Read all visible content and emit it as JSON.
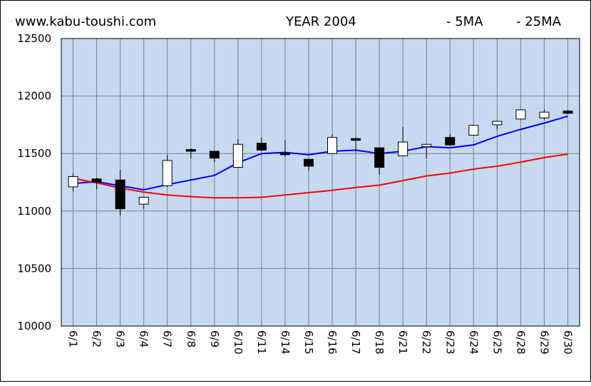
{
  "header": {
    "site": "www.kabu-toushi.com",
    "title": "YEAR 2004"
  },
  "legend": [
    {
      "label": "- 5MA",
      "color": "#0000ff"
    },
    {
      "label": "- 25MA",
      "color": "#ff0000"
    }
  ],
  "colors": {
    "plot_bg": "#c5d9f1",
    "grid": "#808080",
    "up_body": "#ffffff",
    "down_body": "#000000",
    "ma5": "#0000ff",
    "ma25": "#ff0000"
  },
  "chart_data": {
    "type": "candlestick",
    "title": "YEAR 2004",
    "ylim": [
      10000,
      12500
    ],
    "yticks": [
      10000,
      10500,
      11000,
      11500,
      12000,
      12500
    ],
    "grid": true,
    "legend_position": "top-right",
    "categories": [
      "6/1",
      "6/2",
      "6/3",
      "6/4",
      "6/7",
      "6/8",
      "6/9",
      "6/10",
      "6/11",
      "6/14",
      "6/15",
      "6/16",
      "6/17",
      "6/18",
      "6/21",
      "6/22",
      "6/23",
      "6/24",
      "6/25",
      "6/28",
      "6/29",
      "6/30"
    ],
    "candles": [
      {
        "open": 11210,
        "close": 11300,
        "high": 11330,
        "low": 11170
      },
      {
        "open": 11280,
        "close": 11250,
        "high": 11290,
        "low": 11190
      },
      {
        "open": 11270,
        "close": 11020,
        "high": 11360,
        "low": 10960
      },
      {
        "open": 11060,
        "close": 11120,
        "high": 11125,
        "low": 11020
      },
      {
        "open": 11220,
        "close": 11440,
        "high": 11490,
        "low": 11210
      },
      {
        "open": 11535,
        "close": 11520,
        "high": 11545,
        "low": 11460
      },
      {
        "open": 11520,
        "close": 11460,
        "high": 11525,
        "low": 11425
      },
      {
        "open": 11380,
        "close": 11580,
        "high": 11625,
        "low": 11375
      },
      {
        "open": 11590,
        "close": 11530,
        "high": 11640,
        "low": 11520
      },
      {
        "open": 11505,
        "close": 11490,
        "high": 11620,
        "low": 11470
      },
      {
        "open": 11450,
        "close": 11390,
        "high": 11455,
        "low": 11350
      },
      {
        "open": 11500,
        "close": 11640,
        "high": 11670,
        "low": 11495
      },
      {
        "open": 11630,
        "close": 11615,
        "high": 11640,
        "low": 11510
      },
      {
        "open": 11550,
        "close": 11380,
        "high": 11555,
        "low": 11315
      },
      {
        "open": 11480,
        "close": 11600,
        "high": 11730,
        "low": 11475
      },
      {
        "open": 11560,
        "close": 11580,
        "high": 11585,
        "low": 11460
      },
      {
        "open": 11640,
        "close": 11575,
        "high": 11670,
        "low": 11570
      },
      {
        "open": 11660,
        "close": 11745,
        "high": 11750,
        "low": 11655
      },
      {
        "open": 11750,
        "close": 11780,
        "high": 11785,
        "low": 11710
      },
      {
        "open": 11800,
        "close": 11880,
        "high": 11885,
        "low": 11790
      },
      {
        "open": 11810,
        "close": 11860,
        "high": 11885,
        "low": 11795
      },
      {
        "open": 11870,
        "close": 11850,
        "high": 11880,
        "low": 11845
      }
    ],
    "series": [
      {
        "name": "5MA",
        "color": "#0000ff",
        "values": [
          11240,
          11255,
          11220,
          11185,
          11230,
          11270,
          11310,
          11420,
          11500,
          11510,
          11490,
          11520,
          11530,
          11500,
          11520,
          11560,
          11550,
          11575,
          11650,
          11710,
          11765,
          11825
        ]
      },
      {
        "name": "25MA",
        "color": "#ff0000",
        "values": [
          11285,
          11245,
          11200,
          11165,
          11140,
          11125,
          11115,
          11115,
          11120,
          11140,
          11160,
          11180,
          11205,
          11225,
          11265,
          11305,
          11330,
          11365,
          11390,
          11425,
          11465,
          11495
        ]
      }
    ]
  }
}
